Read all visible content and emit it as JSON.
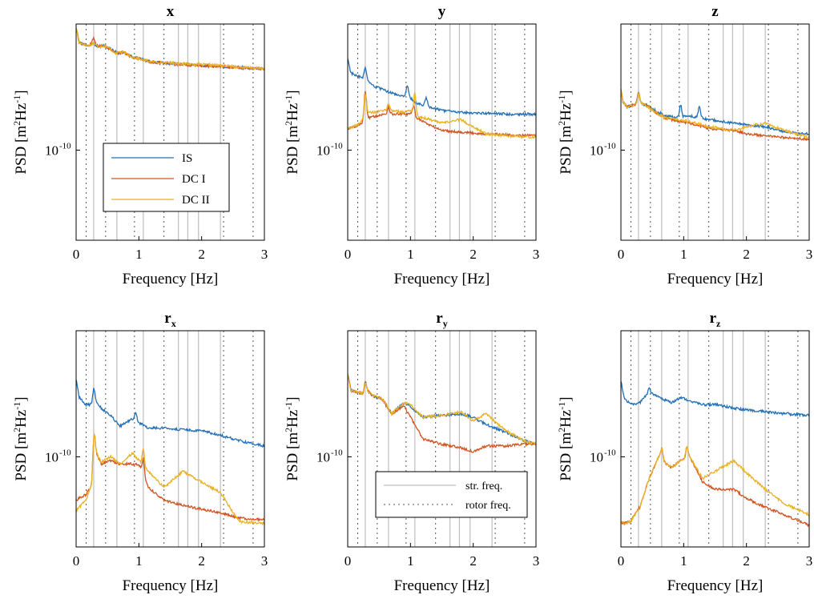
{
  "figure": {
    "colors": {
      "IS": "#2270b7",
      "DC_I": "#d2531f",
      "DC_II": "#eab222",
      "str": "#bdbdbd",
      "rotor": "#555555"
    }
  },
  "chart_data": [
    {
      "type": "line",
      "title": "x",
      "xlabel": "Frequency [Hz]",
      "ylabel": "PSD [m²Hz⁻¹]",
      "ylabel_parts": {
        "pre": "PSD [m",
        "sup1": "2",
        "mid": "Hz",
        "sup2": "-1",
        "post": "]"
      },
      "xlim": [
        0,
        3
      ],
      "xticks": [
        "0",
        "1",
        "2",
        "3"
      ],
      "yscale": "log",
      "ytick_labels": [
        "10",
        "-10"
      ],
      "legend": {
        "placement": "lower-left",
        "entries": [
          "IS",
          "DC I",
          "DC II"
        ]
      },
      "x": [
        0,
        0.05,
        0.1,
        0.2,
        0.28,
        0.35,
        0.45,
        0.55,
        0.65,
        0.75,
        0.9,
        1.0,
        1.2,
        1.5,
        1.9,
        2.3,
        2.7,
        3.0
      ],
      "series": [
        {
          "name": "IS",
          "color": "#2270b7",
          "values": [
            3.4,
            3.0,
            2.95,
            2.9,
            2.95,
            2.87,
            2.9,
            2.8,
            2.68,
            2.72,
            2.58,
            2.55,
            2.45,
            2.4,
            2.36,
            2.32,
            2.28,
            2.26
          ]
        },
        {
          "name": "DC I",
          "color": "#d2531f",
          "values": [
            3.4,
            3.0,
            2.95,
            2.9,
            3.0,
            2.88,
            2.9,
            2.8,
            2.68,
            2.72,
            2.58,
            2.54,
            2.44,
            2.4,
            2.35,
            2.32,
            2.28,
            2.25
          ]
        },
        {
          "name": "DC II",
          "color": "#eab222",
          "values": [
            3.4,
            3.0,
            2.95,
            2.9,
            2.97,
            2.87,
            2.9,
            2.8,
            2.67,
            2.72,
            2.58,
            2.54,
            2.45,
            2.42,
            2.38,
            2.35,
            2.29,
            2.26
          ]
        }
      ],
      "peaks": [
        {
          "s": 1,
          "x": 0.28,
          "h": 0.12
        },
        {
          "s": 0,
          "x": 0.65,
          "h": 0.05
        },
        {
          "s": 2,
          "x": 0.68,
          "h": 0.05
        }
      ]
    },
    {
      "type": "line",
      "title": "y",
      "xlabel": "Frequency [Hz]",
      "ylabel": "PSD [m²Hz⁻¹]",
      "ylabel_parts": {
        "pre": "PSD [m",
        "sup1": "2",
        "mid": "Hz",
        "sup2": "-1",
        "post": "]"
      },
      "xlim": [
        0,
        3
      ],
      "xticks": [
        "0",
        "1",
        "2",
        "3"
      ],
      "yscale": "log",
      "ytick_labels": [
        "10",
        "-10"
      ],
      "x": [
        0,
        0.05,
        0.15,
        0.25,
        0.3,
        0.35,
        0.45,
        0.6,
        0.75,
        0.9,
        1.0,
        1.1,
        1.3,
        1.5,
        1.8,
        2.2,
        2.6,
        3.0
      ],
      "series": [
        {
          "name": "IS",
          "color": "#2270b7",
          "values": [
            2.55,
            2.15,
            2.05,
            2.0,
            1.95,
            1.85,
            1.75,
            1.65,
            1.55,
            1.5,
            1.45,
            1.3,
            1.2,
            1.1,
            1.05,
            1.02,
            1.0,
            1.0
          ]
        },
        {
          "name": "DC I",
          "color": "#d2531f",
          "values": [
            0.6,
            0.62,
            0.68,
            0.78,
            0.95,
            0.9,
            0.95,
            1.0,
            1.0,
            1.0,
            1.0,
            0.9,
            0.7,
            0.55,
            0.5,
            0.45,
            0.42,
            0.4
          ]
        },
        {
          "name": "DC II",
          "color": "#eab222",
          "values": [
            0.58,
            0.62,
            0.7,
            0.85,
            1.05,
            1.05,
            1.05,
            1.1,
            1.1,
            1.05,
            1.1,
            0.95,
            0.85,
            0.75,
            0.85,
            0.45,
            0.38,
            0.36
          ]
        }
      ],
      "peaks": [
        {
          "s": 0,
          "x": 0.28,
          "h": 0.3
        },
        {
          "s": 0,
          "x": 0.95,
          "h": 0.3
        },
        {
          "s": 0,
          "x": 1.25,
          "h": 0.25
        },
        {
          "s": 1,
          "x": 0.28,
          "h": 0.75
        },
        {
          "s": 1,
          "x": 0.65,
          "h": 0.2
        },
        {
          "s": 1,
          "x": 1.05,
          "h": 0.3
        },
        {
          "s": 2,
          "x": 0.28,
          "h": 0.6
        },
        {
          "s": 2,
          "x": 0.65,
          "h": 0.2
        },
        {
          "s": 2,
          "x": 1.07,
          "h": 0.6
        }
      ]
    },
    {
      "type": "line",
      "title": "z",
      "xlabel": "Frequency [Hz]",
      "ylabel": "PSD [m²Hz⁻¹]",
      "ylabel_parts": {
        "pre": "PSD [m",
        "sup1": "2",
        "mid": "Hz",
        "sup2": "-1",
        "post": "]"
      },
      "xlim": [
        0,
        3
      ],
      "xticks": [
        "0",
        "1",
        "2",
        "3"
      ],
      "yscale": "log",
      "ytick_labels": [
        "10",
        "-10"
      ],
      "x": [
        0,
        0.03,
        0.1,
        0.2,
        0.3,
        0.4,
        0.5,
        0.7,
        0.9,
        1.1,
        1.4,
        1.8,
        2.0,
        2.3,
        2.6,
        3.0
      ],
      "series": [
        {
          "name": "IS",
          "color": "#2270b7",
          "values": [
            1.7,
            1.35,
            1.2,
            1.25,
            1.3,
            1.25,
            1.15,
            0.95,
            0.9,
            0.95,
            0.85,
            0.75,
            0.7,
            0.65,
            0.5,
            0.45
          ]
        },
        {
          "name": "DC I",
          "color": "#d2531f",
          "values": [
            1.7,
            1.35,
            1.2,
            1.25,
            1.3,
            1.25,
            1.1,
            0.9,
            0.8,
            0.75,
            0.6,
            0.55,
            0.45,
            0.4,
            0.35,
            0.3
          ]
        },
        {
          "name": "DC II",
          "color": "#eab222",
          "values": [
            1.7,
            1.35,
            1.2,
            1.25,
            1.3,
            1.25,
            1.1,
            0.9,
            0.85,
            0.8,
            0.65,
            0.55,
            0.65,
            0.75,
            0.55,
            0.35
          ]
        }
      ],
      "peaks": [
        {
          "s": 0,
          "x": 0.28,
          "h": 0.3
        },
        {
          "s": 1,
          "x": 0.28,
          "h": 0.3
        },
        {
          "s": 2,
          "x": 0.28,
          "h": 0.3
        },
        {
          "s": 0,
          "x": 0.95,
          "h": 0.35
        },
        {
          "s": 0,
          "x": 1.25,
          "h": 0.3
        }
      ]
    },
    {
      "type": "line",
      "title": "r",
      "title_sub": "x",
      "xlabel": "Frequency [Hz]",
      "ylabel": "PSD [m²Hz⁻¹]",
      "ylabel_parts": {
        "pre": "PSD [m",
        "sup1": "2",
        "mid": "Hz",
        "sup2": "-1",
        "post": "]"
      },
      "xlim": [
        0,
        3
      ],
      "xticks": [
        "0",
        "1",
        "2",
        "3"
      ],
      "yscale": "log",
      "ytick_labels": [
        "10",
        "-10"
      ],
      "x": [
        0,
        0.05,
        0.15,
        0.25,
        0.3,
        0.4,
        0.55,
        0.7,
        0.9,
        1.0,
        1.15,
        1.4,
        1.7,
        2.0,
        2.3,
        2.6,
        3.0
      ],
      "series": [
        {
          "name": "IS",
          "color": "#2270b7",
          "values": [
            2.15,
            1.65,
            1.45,
            1.45,
            1.6,
            1.35,
            1.15,
            0.85,
            1.05,
            0.95,
            0.8,
            0.8,
            0.75,
            0.72,
            0.6,
            0.45,
            0.3
          ]
        },
        {
          "name": "DC I",
          "color": "#d2531f",
          "values": [
            -1.2,
            -1.15,
            -1.05,
            -0.8,
            0.2,
            -0.2,
            -0.1,
            -0.2,
            -0.2,
            -0.2,
            -0.85,
            -1.2,
            -1.35,
            -1.45,
            -1.55,
            -1.7,
            -1.75
          ]
        },
        {
          "name": "DC II",
          "color": "#eab222",
          "values": [
            -1.5,
            -1.4,
            -1.2,
            -0.8,
            0.2,
            -0.15,
            0.0,
            -0.2,
            0.1,
            -0.1,
            -0.4,
            -0.85,
            -0.4,
            -0.7,
            -1.0,
            -1.8,
            -1.85
          ]
        }
      ],
      "peaks": [
        {
          "s": 0,
          "x": 0.28,
          "h": 0.35
        },
        {
          "s": 1,
          "x": 0.28,
          "h": 0.7
        },
        {
          "s": 2,
          "x": 0.28,
          "h": 0.7
        },
        {
          "s": 1,
          "x": 1.07,
          "h": 0.45
        },
        {
          "s": 2,
          "x": 1.07,
          "h": 0.45
        },
        {
          "s": 0,
          "x": 0.95,
          "h": 0.2
        }
      ]
    },
    {
      "type": "line",
      "title": "r",
      "title_sub": "y",
      "xlabel": "Frequency [Hz]",
      "ylabel": "PSD [m²Hz⁻¹]",
      "ylabel_parts": {
        "pre": "PSD [m",
        "sup1": "2",
        "mid": "Hz",
        "sup2": "-1",
        "post": "]"
      },
      "xlim": [
        0,
        3
      ],
      "xticks": [
        "0",
        "1",
        "2",
        "3"
      ],
      "yscale": "log",
      "ytick_labels": [
        "10",
        "-10"
      ],
      "legend": {
        "placement": "lower-right",
        "entries": [
          "str. freq.",
          "rotor freq."
        ]
      },
      "x": [
        0,
        0.05,
        0.15,
        0.25,
        0.3,
        0.4,
        0.55,
        0.7,
        0.9,
        1.0,
        1.2,
        1.5,
        1.8,
        2.0,
        2.2,
        2.5,
        2.8,
        3.0
      ],
      "series": [
        {
          "name": "IS",
          "color": "#2270b7",
          "values": [
            2.3,
            1.85,
            1.8,
            1.75,
            1.85,
            1.7,
            1.6,
            1.2,
            1.5,
            1.4,
            1.1,
            1.15,
            1.2,
            1.1,
            0.9,
            0.7,
            0.45,
            0.35
          ]
        },
        {
          "name": "DC I",
          "color": "#d2531f",
          "values": [
            2.3,
            1.85,
            1.8,
            1.75,
            1.85,
            1.7,
            1.6,
            1.2,
            1.4,
            1.1,
            0.5,
            0.35,
            0.25,
            0.15,
            0.3,
            0.3,
            0.35,
            0.35
          ]
        },
        {
          "name": "DC II",
          "color": "#eab222",
          "values": [
            2.3,
            1.85,
            1.8,
            1.75,
            1.85,
            1.7,
            1.6,
            1.2,
            1.5,
            1.45,
            1.1,
            1.15,
            1.25,
            1.0,
            1.2,
            0.75,
            0.45,
            0.35
          ]
        }
      ],
      "peaks": [
        {
          "s": 0,
          "x": 0.28,
          "h": 0.25
        },
        {
          "s": 1,
          "x": 0.28,
          "h": 0.25
        },
        {
          "s": 2,
          "x": 0.28,
          "h": 0.25
        }
      ]
    },
    {
      "type": "line",
      "title": "r",
      "title_sub": "z",
      "xlabel": "Frequency [Hz]",
      "ylabel": "PSD [m²Hz⁻¹]",
      "ylabel_parts": {
        "pre": "PSD [m",
        "sup1": "2",
        "mid": "Hz",
        "sup2": "-1",
        "post": "]"
      },
      "xlim": [
        0,
        3
      ],
      "xticks": [
        "0",
        "1",
        "2",
        "3"
      ],
      "yscale": "log",
      "ytick_labels": [
        "10",
        "-10"
      ],
      "x": [
        0,
        0.05,
        0.15,
        0.3,
        0.45,
        0.6,
        0.8,
        0.95,
        1.1,
        1.3,
        1.5,
        1.8,
        2.0,
        2.3,
        2.6,
        3.0
      ],
      "series": [
        {
          "name": "IS",
          "color": "#2270b7",
          "values": [
            2.1,
            1.65,
            1.45,
            1.5,
            1.8,
            1.65,
            1.5,
            1.65,
            1.55,
            1.45,
            1.45,
            1.35,
            1.3,
            1.25,
            1.2,
            1.15
          ]
        },
        {
          "name": "DC I",
          "color": "#d2531f",
          "values": [
            -1.8,
            -1.85,
            -1.8,
            -1.4,
            -0.6,
            0.0,
            -0.3,
            -0.1,
            0.0,
            -0.7,
            -0.9,
            -0.9,
            -1.15,
            -1.4,
            -1.6,
            -1.9
          ]
        },
        {
          "name": "DC II",
          "color": "#eab222",
          "values": [
            -1.8,
            -1.85,
            -1.8,
            -1.4,
            -0.6,
            0.0,
            -0.3,
            -0.1,
            0.0,
            -0.6,
            -0.4,
            -0.1,
            -0.45,
            -0.9,
            -1.3,
            -1.6
          ]
        }
      ],
      "peaks": [
        {
          "s": 1,
          "x": 0.65,
          "h": 0.3
        },
        {
          "s": 2,
          "x": 0.65,
          "h": 0.3
        },
        {
          "s": 1,
          "x": 1.05,
          "h": 0.3
        },
        {
          "s": 2,
          "x": 1.05,
          "h": 0.3
        },
        {
          "s": 0,
          "x": 0.45,
          "h": 0.1
        }
      ]
    }
  ],
  "reference_lines": {
    "structural_freqs": [
      0.28,
      0.65,
      1.07,
      1.63,
      1.78,
      1.95,
      2.3
    ],
    "rotor_freqs": [
      0.16,
      0.47,
      0.93,
      1.4,
      2.35,
      2.82
    ]
  }
}
